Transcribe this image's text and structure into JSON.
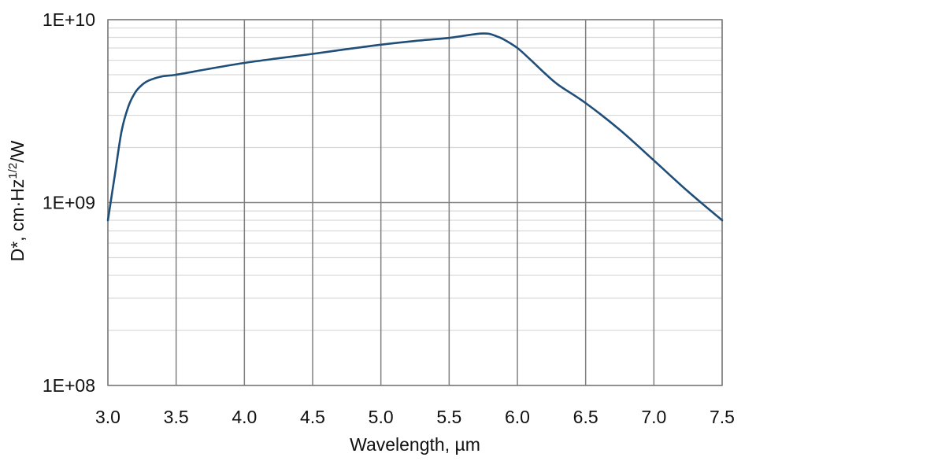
{
  "chart_data": {
    "type": "line",
    "title": "",
    "xlabel": "Wavelength, µm",
    "ylabel": {
      "prefix": "D*, cm",
      "dot": "·",
      "hz": "Hz",
      "exponent": "1/2",
      "suffix": "/W"
    },
    "x_scale": "linear",
    "y_scale": "log",
    "xlim": [
      3.0,
      7.5
    ],
    "ylim": [
      100000000,
      10000000000
    ],
    "x_ticks": [
      3.0,
      3.5,
      4.0,
      4.5,
      5.0,
      5.5,
      6.0,
      6.5,
      7.0,
      7.5
    ],
    "x_tick_labels": [
      "3.0",
      "3.5",
      "4.0",
      "4.5",
      "5.0",
      "5.5",
      "6.0",
      "6.5",
      "7.0",
      "7.5"
    ],
    "y_ticks": [
      100000000,
      1000000000,
      10000000000
    ],
    "y_tick_labels": [
      "1E+08",
      "1E+09",
      "1E+10"
    ],
    "grid": true,
    "minor_grid": true,
    "legend": "none",
    "series": [
      {
        "color": "#1f4e79",
        "x": [
          3.0,
          3.05,
          3.1,
          3.15,
          3.2,
          3.25,
          3.3,
          3.4,
          3.5,
          3.75,
          4.0,
          4.25,
          4.5,
          4.75,
          5.0,
          5.25,
          5.5,
          5.6,
          5.7,
          5.75,
          5.8,
          5.85,
          5.9,
          6.0,
          6.1,
          6.2,
          6.3,
          6.5,
          6.75,
          7.0,
          7.25,
          7.5
        ],
        "y": [
          800000000,
          1400000000,
          2450000000,
          3350000000,
          4000000000,
          4400000000,
          4650000000,
          4900000000,
          5000000000,
          5400000000,
          5800000000,
          6150000000,
          6500000000,
          6900000000,
          7300000000,
          7650000000,
          7950000000,
          8150000000,
          8350000000,
          8400000000,
          8350000000,
          8100000000,
          7800000000,
          7000000000,
          6000000000,
          5100000000,
          4400000000,
          3500000000,
          2500000000,
          1700000000,
          1150000000,
          800000000
        ]
      }
    ]
  }
}
